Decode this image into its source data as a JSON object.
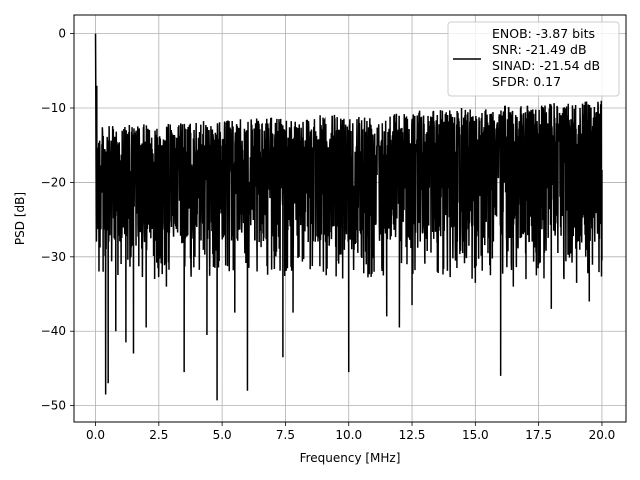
{
  "chart_data": {
    "type": "line",
    "title": "",
    "xlabel": "Frequency [MHz]",
    "ylabel": "PSD [dB]",
    "xlim": [
      -0.85,
      20.95
    ],
    "ylim": [
      -52.2,
      2.5
    ],
    "xticks": [
      0.0,
      2.5,
      5.0,
      7.5,
      10.0,
      12.5,
      15.0,
      17.5,
      20.0
    ],
    "xtick_labels": [
      "0.0",
      "2.5",
      "5.0",
      "7.5",
      "10.0",
      "12.5",
      "15.0",
      "17.5",
      "20.0"
    ],
    "yticks": [
      0,
      -10,
      -20,
      -30,
      -40,
      -50
    ],
    "ytick_labels": [
      "0",
      "−10",
      "−20",
      "−30",
      "−40",
      "−50"
    ],
    "grid": true,
    "legend_position": "top-right",
    "line_color": "#000000",
    "series": [
      {
        "legend_lines": [
          "ENOB: -3.87 bits",
          "SNR: -21.49 dB",
          "SINAD: -21.54 dB",
          "SFDR: 0.17"
        ],
        "x": [
          0.0,
          0.05,
          0.1,
          0.2,
          0.3,
          0.4,
          0.5,
          0.6,
          0.8,
          1.0,
          1.2,
          1.4,
          1.5,
          1.6,
          1.8,
          2.0,
          2.2,
          2.5,
          2.8,
          3.0,
          3.5,
          4.0,
          4.4,
          4.8,
          5.0,
          5.5,
          6.0,
          6.5,
          7.0,
          7.4,
          7.8,
          8.4,
          9.0,
          9.5,
          10.0,
          10.5,
          11.0,
          11.5,
          12.0,
          12.3,
          12.5,
          13.0,
          13.5,
          14.0,
          14.5,
          15.0,
          15.5,
          16.0,
          16.5,
          17.0,
          17.5,
          18.0,
          18.5,
          19.0,
          19.5,
          20.0
        ],
        "y": [
          0.0,
          -7.0,
          -22.0,
          -26.0,
          -32.0,
          -48.5,
          -47.0,
          -24.0,
          -40.0,
          -28.0,
          -41.5,
          -30.0,
          -43.0,
          -28.5,
          -24.5,
          -39.5,
          -24.0,
          -31.0,
          -34.0,
          -26.0,
          -45.5,
          -26.0,
          -40.5,
          -49.3,
          -27.0,
          -37.5,
          -48.0,
          -26.5,
          -25.0,
          -43.5,
          -37.5,
          -28.0,
          -32.0,
          -26.5,
          -45.5,
          -30.0,
          -32.0,
          -38.0,
          -39.5,
          -31.0,
          -36.5,
          -29.5,
          -32.0,
          -29.0,
          -29.5,
          -33.5,
          -29.5,
          -46.0,
          -34.0,
          -33.0,
          -31.0,
          -37.0,
          -33.0,
          -33.5,
          -36.0,
          -30.5
        ]
      }
    ]
  }
}
